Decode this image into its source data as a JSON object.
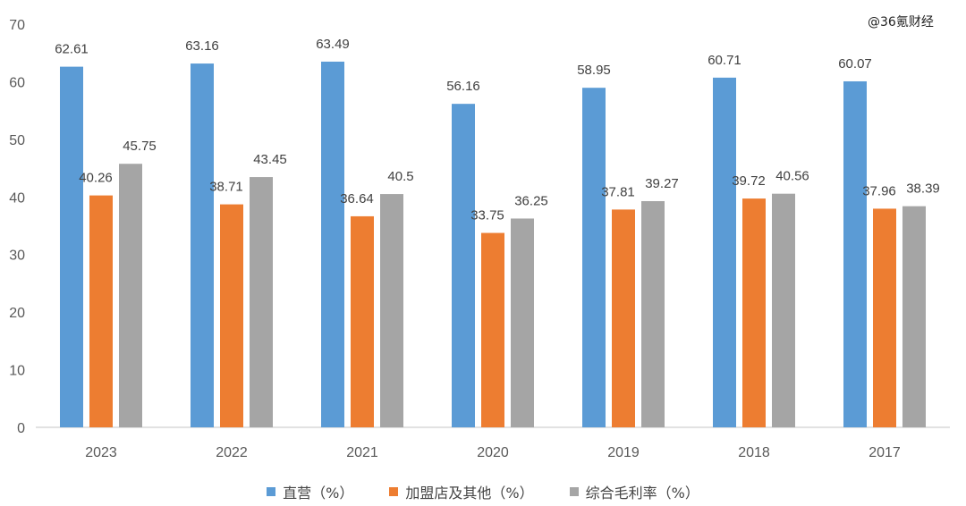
{
  "watermark": "@36氪财经",
  "colors": {
    "series1": "#5B9BD5",
    "series2": "#ED7D31",
    "series3": "#A5A5A5",
    "axis": "#D9D9D9",
    "text": "#595959"
  },
  "chart_data": {
    "type": "bar",
    "title": "",
    "xlabel": "",
    "ylabel": "",
    "ylim": [
      0,
      70
    ],
    "yticks": [
      0,
      10,
      20,
      30,
      40,
      50,
      60,
      70
    ],
    "grid": false,
    "legend_position": "bottom",
    "categories": [
      "2023",
      "2022",
      "2021",
      "2020",
      "2019",
      "2018",
      "2017"
    ],
    "series": [
      {
        "name": "直营（%）",
        "values": [
          62.61,
          63.16,
          63.49,
          56.16,
          58.95,
          60.71,
          60.07
        ],
        "labels": [
          "62.61",
          "63.16",
          "63.49",
          "56.16",
          "58.95",
          "60.71",
          "60.07"
        ]
      },
      {
        "name": "加盟店及其他（%）",
        "values": [
          40.26,
          38.71,
          36.64,
          33.75,
          37.81,
          39.72,
          37.96
        ],
        "labels": [
          "40.26",
          "38.71",
          "36.64",
          "33.75",
          "37.81",
          "39.72",
          "37.96"
        ]
      },
      {
        "name": "综合毛利率（%）",
        "values": [
          45.75,
          43.45,
          40.5,
          36.25,
          39.27,
          40.56,
          38.39
        ],
        "labels": [
          "45.75",
          "43.45",
          "40.5",
          "36.25",
          "39.27",
          "40.56",
          "38.39"
        ]
      }
    ]
  }
}
